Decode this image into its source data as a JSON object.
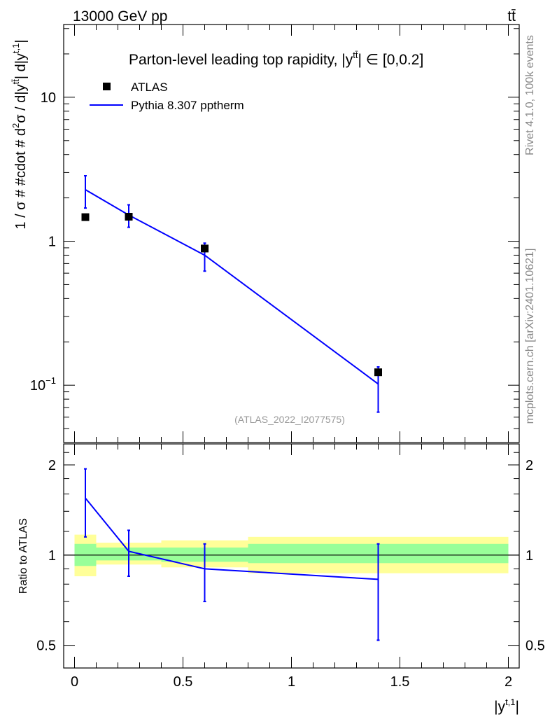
{
  "header": {
    "energy_label": "13000 GeV pp",
    "process_label": "tt̄"
  },
  "side_labels": {
    "rivet": "Rivet 4.1.0,  100k events",
    "mcplots": "mcplots.cern.ch [arXiv:2401.10621]"
  },
  "chart_data": [
    {
      "type": "scatter",
      "panel": "main",
      "title": "Parton-level leading top rapidity, |y^{tt̄}| ∈ [0,0.2]",
      "title_parts": {
        "pre": "Parton-level leading top rapidity, |y",
        "sup": "tt̄",
        "post": "| ∈ [0,0.2]"
      },
      "ylabel": "1 / σ # #cdot # d²σ / d|y^{tt̄}| d|y^{t,1}|",
      "ylabel_parts": {
        "a": "1 / σ # #cdot # d",
        "a_sup": "2",
        "b": "σ / d|y",
        "b_sup": "tt̄",
        "c": "| d|y",
        "c_sup": "t,1",
        "d": "|"
      },
      "yscale": "log",
      "ylim": [
        0.04,
        32
      ],
      "xlim": [
        -0.05,
        2.05
      ],
      "yticks": [
        {
          "value": 0.1,
          "label": "10",
          "sup": "−1"
        },
        {
          "value": 1,
          "label": "1",
          "sup": ""
        },
        {
          "value": 10,
          "label": "10",
          "sup": ""
        }
      ],
      "legend": [
        {
          "name": "ATLAS",
          "marker": "square",
          "color": "#000000"
        },
        {
          "name": "Pythia 8.307 pptherm",
          "marker": "line",
          "color": "#0000ff"
        }
      ],
      "watermark": "(ATLAS_2022_I2077575)",
      "series": [
        {
          "name": "ATLAS",
          "color": "#000000",
          "points": [
            {
              "x": 0.05,
              "y": 1.47
            },
            {
              "x": 0.25,
              "y": 1.48
            },
            {
              "x": 0.6,
              "y": 0.89
            },
            {
              "x": 1.4,
              "y": 0.123
            }
          ]
        },
        {
          "name": "Pythia 8.307 pptherm",
          "color": "#0000ff",
          "points": [
            {
              "x": 0.05,
              "y": 2.28,
              "ylo": 1.7,
              "yhi": 2.85
            },
            {
              "x": 0.25,
              "y": 1.52,
              "ylo": 1.25,
              "yhi": 1.79
            },
            {
              "x": 0.6,
              "y": 0.8,
              "ylo": 0.62,
              "yhi": 0.97
            },
            {
              "x": 1.4,
              "y": 0.102,
              "ylo": 0.065,
              "yhi": 0.134
            }
          ]
        }
      ]
    },
    {
      "type": "line",
      "panel": "ratio",
      "ylabel": "Ratio to ATLAS",
      "xlabel": "|y^{t,1}|",
      "xlabel_parts": {
        "pre": "|y",
        "sup": "t,1",
        "post": "|"
      },
      "yscale": "log",
      "ylim": [
        0.42,
        2.35
      ],
      "xlim": [
        -0.05,
        2.05
      ],
      "xticks": [
        {
          "value": 0,
          "label": "0"
        },
        {
          "value": 0.5,
          "label": "0.5"
        },
        {
          "value": 1,
          "label": "1"
        },
        {
          "value": 1.5,
          "label": "1.5"
        },
        {
          "value": 2,
          "label": "2"
        }
      ],
      "yticks": [
        {
          "value": 0.5,
          "label": "0.5"
        },
        {
          "value": 1,
          "label": "1"
        },
        {
          "value": 2,
          "label": "2"
        }
      ],
      "bands": [
        {
          "x0": 0.0,
          "x1": 0.1,
          "y_lo": 0.85,
          "y_hi": 1.17,
          "g_lo": 0.92,
          "g_hi": 1.09
        },
        {
          "x0": 0.1,
          "x1": 0.4,
          "y_lo": 0.93,
          "y_hi": 1.1,
          "g_lo": 0.96,
          "g_hi": 1.06
        },
        {
          "x0": 0.4,
          "x1": 0.8,
          "y_lo": 0.91,
          "y_hi": 1.12,
          "g_lo": 0.95,
          "g_hi": 1.06
        },
        {
          "x0": 0.8,
          "x1": 2.0,
          "y_lo": 0.87,
          "y_hi": 1.15,
          "g_lo": 0.94,
          "g_hi": 1.09
        }
      ],
      "band_colors": {
        "yellow": "#ffff99",
        "green": "#99ff99"
      },
      "reference_line": 1,
      "series": [
        {
          "name": "Pythia 8.307 pptherm",
          "color": "#0000ff",
          "points": [
            {
              "x": 0.05,
              "y": 1.55,
              "ylo": 1.15,
              "yhi": 1.94
            },
            {
              "x": 0.25,
              "y": 1.03,
              "ylo": 0.85,
              "yhi": 1.21
            },
            {
              "x": 0.6,
              "y": 0.9,
              "ylo": 0.7,
              "yhi": 1.09
            },
            {
              "x": 1.4,
              "y": 0.83,
              "ylo": 0.52,
              "yhi": 1.09
            }
          ]
        }
      ]
    }
  ]
}
